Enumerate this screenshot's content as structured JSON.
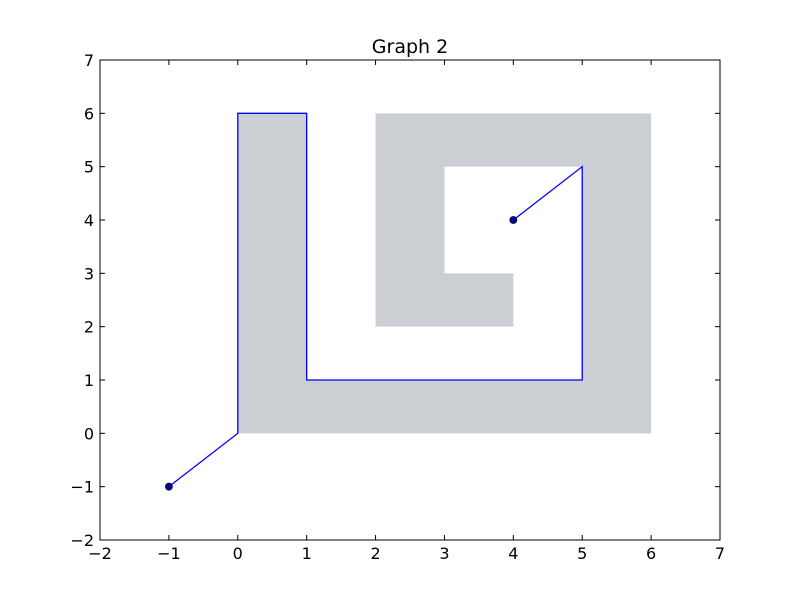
{
  "chart_data": {
    "type": "line",
    "title": "Graph 2",
    "xlabel": "",
    "ylabel": "",
    "xlim": [
      -2,
      7
    ],
    "ylim": [
      -2,
      7
    ],
    "xticks": [
      -2,
      -1,
      0,
      1,
      2,
      3,
      4,
      5,
      6,
      7
    ],
    "yticks": [
      -2,
      -1,
      0,
      1,
      2,
      3,
      4,
      5,
      6,
      7
    ],
    "tick_labels_x": [
      "−2",
      "−1",
      "0",
      "1",
      "2",
      "3",
      "4",
      "5",
      "6",
      "7"
    ],
    "tick_labels_y": [
      "−2",
      "−1",
      "0",
      "1",
      "2",
      "3",
      "4",
      "5",
      "6",
      "7"
    ],
    "grid": false,
    "legend": "none",
    "obstacles": [
      {
        "points": [
          [
            0,
            0
          ],
          [
            6,
            0
          ],
          [
            6,
            6
          ],
          [
            2,
            6
          ],
          [
            2,
            2
          ],
          [
            4,
            2
          ],
          [
            4,
            3
          ],
          [
            3,
            3
          ],
          [
            3,
            5
          ],
          [
            5,
            5
          ],
          [
            5,
            1
          ],
          [
            1,
            1
          ],
          [
            1,
            6
          ],
          [
            0,
            6
          ]
        ],
        "color": "#cbced2"
      }
    ],
    "series": [
      {
        "x": [
          -1,
          0,
          0,
          1,
          1,
          5,
          5,
          4
        ],
        "y": [
          -1,
          0,
          6,
          6,
          1,
          1,
          5,
          4
        ],
        "color": "#0000ff"
      }
    ],
    "markers": [
      {
        "x": -1,
        "y": -1,
        "color": "#0000aa"
      },
      {
        "x": 4,
        "y": 4,
        "color": "#0000aa"
      }
    ]
  }
}
